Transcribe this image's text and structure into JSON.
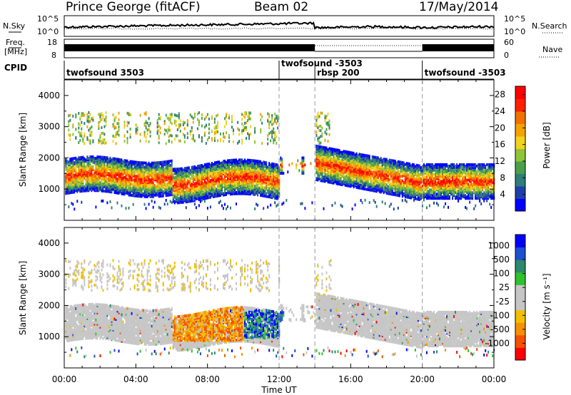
{
  "header": {
    "station": "Prince George (fitACF)",
    "beam": "Beam 02",
    "date": "17/May/2014"
  },
  "noise_panel": {
    "left_label": "N.Sky",
    "left_ticks": [
      "10^5",
      "10^0"
    ],
    "right_label": "N.Search",
    "right_ticks": [
      "10^5",
      "10^0"
    ]
  },
  "freq_panel": {
    "left_label_1": "Freq.",
    "left_label_2": "[MHz]",
    "left_ticks": [
      "18",
      "8"
    ],
    "right_label": "Nave",
    "right_ticks": [
      "60",
      "0"
    ]
  },
  "cpid": {
    "label": "CPID",
    "segments": [
      {
        "name": "twofsound 3503",
        "start_hour": 0,
        "end_hour": 12
      },
      {
        "name": "twofsound -3503",
        "start_hour": 12,
        "end_hour": 14
      },
      {
        "name": "rbsp 200",
        "start_hour": 14,
        "end_hour": 20
      },
      {
        "name": "twofsound -3503",
        "start_hour": 20,
        "end_hour": 24
      }
    ]
  },
  "colors": {
    "power_scale": [
      "#0000ff",
      "#1f3fa8",
      "#2e7d78",
      "#4aa04a",
      "#8fc33a",
      "#f2d21c",
      "#f5a200",
      "#f07000",
      "#ff2000",
      "#ff0000"
    ],
    "velocity_scale": [
      "#0000ff",
      "#1e4fd0",
      "#2a8a6a",
      "#2ec22e",
      "#c6c6c6",
      "#c6c6c6",
      "#f0c000",
      "#f59000",
      "#f55000",
      "#ff0000"
    ]
  },
  "chart_data": [
    {
      "type": "heatmap",
      "title": "",
      "xlabel": "",
      "ylabel": "Slant Range [km]",
      "xlim": [
        "00:00",
        "00:00"
      ],
      "ylim": [
        0,
        4500
      ],
      "x_ticks": [
        "00:00",
        "04:00",
        "08:00",
        "12:00",
        "16:00",
        "20:00",
        "00:00"
      ],
      "y_ticks": [
        1000,
        2000,
        3000,
        4000
      ],
      "colorbar": {
        "label": "Power [dB]",
        "ticks": [
          4,
          8,
          12,
          16,
          20,
          24,
          28
        ],
        "range": [
          0,
          30
        ]
      }
    },
    {
      "type": "heatmap",
      "title": "",
      "xlabel": "Time UT",
      "ylabel": "Slant Range [km]",
      "xlim": [
        "00:00",
        "00:00"
      ],
      "ylim": [
        0,
        4500
      ],
      "x_ticks": [
        "00:00",
        "04:00",
        "08:00",
        "12:00",
        "16:00",
        "20:00",
        "00:00"
      ],
      "y_ticks": [
        1000,
        2000,
        3000,
        4000
      ],
      "colorbar": {
        "label": "Velocity [m s⁻¹]",
        "ticks": [
          1000,
          500,
          100,
          25,
          -25,
          -100,
          -500,
          -1000
        ]
      }
    }
  ]
}
